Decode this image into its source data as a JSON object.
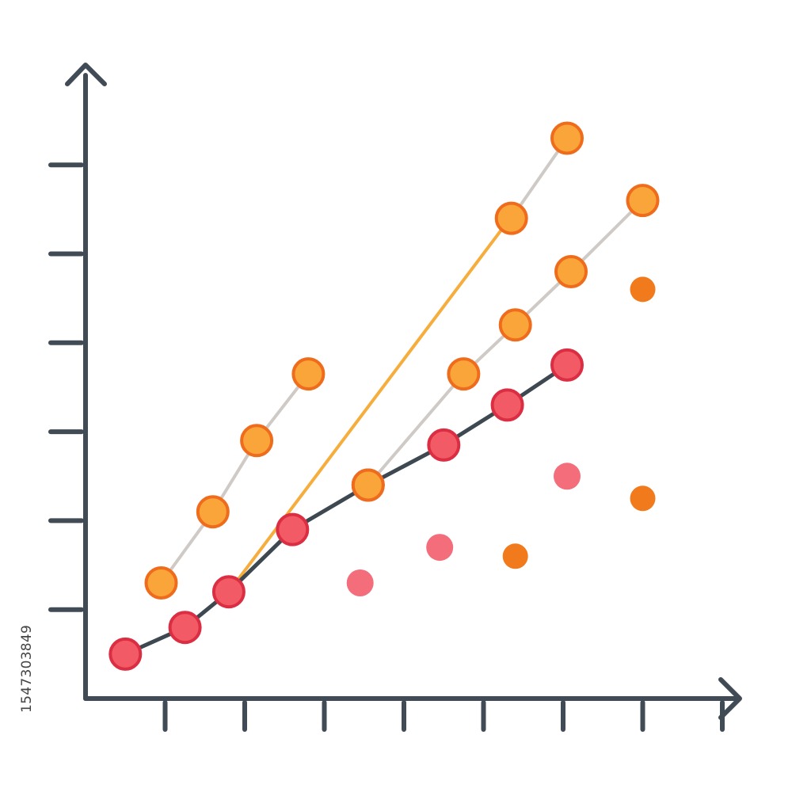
{
  "stock_id": "1547303849",
  "colors": {
    "axis": "#404b55",
    "dark_line": "#3e4851",
    "gray_line": "#cfcac6",
    "orange_line": "#f6ad3c",
    "red_fill": "#f25a66",
    "red_stroke": "#dc2e43",
    "orange_fill": "#f9a53a",
    "orange_stroke": "#ef6c1d",
    "scatter_pink": "#f46d7b",
    "scatter_orange": "#f07a1c"
  },
  "icons": {
    "y_axis_arrow": "arrow-up-icon",
    "x_axis_arrow": "arrow-right-icon"
  },
  "chart_data": {
    "type": "scatter",
    "title": "",
    "xlabel": "",
    "ylabel": "",
    "xlim": [
      0,
      9
    ],
    "ylim": [
      0,
      7.9
    ],
    "x_ticks": [
      1,
      2,
      3,
      4,
      5,
      6,
      7,
      8
    ],
    "y_ticks": [
      1,
      2,
      3,
      4,
      5,
      6
    ],
    "grid": false,
    "legend": "none",
    "series": [
      {
        "marker": "large-red",
        "line": "dark",
        "points": [
          [
            0.5,
            0.5
          ],
          [
            1.25,
            0.8
          ],
          [
            1.8,
            1.2
          ],
          [
            2.6,
            1.9
          ],
          [
            3.55,
            2.4
          ],
          [
            4.5,
            2.85
          ],
          [
            5.3,
            3.3
          ],
          [
            6.05,
            3.75
          ]
        ]
      },
      {
        "marker": "large-orange",
        "line": "gray",
        "points": [
          [
            0.95,
            1.3
          ],
          [
            1.6,
            2.1
          ],
          [
            2.15,
            2.9
          ],
          [
            2.8,
            3.65
          ]
        ]
      },
      {
        "marker": "large-orange",
        "line": "gray",
        "points": [
          [
            3.55,
            2.4
          ],
          [
            4.75,
            3.65
          ],
          [
            5.4,
            4.2
          ],
          [
            6.1,
            4.8
          ],
          [
            7.0,
            5.6
          ]
        ]
      },
      {
        "marker": "large-orange",
        "line": "gray",
        "points": [
          [
            5.35,
            5.4
          ],
          [
            6.05,
            6.3
          ]
        ]
      },
      {
        "marker": "none",
        "line": "orange",
        "points": [
          [
            1.8,
            1.2
          ],
          [
            5.25,
            5.3
          ]
        ]
      },
      {
        "marker": "small-pink",
        "line": "none",
        "points": [
          [
            3.45,
            1.3
          ],
          [
            4.45,
            1.7
          ],
          [
            6.05,
            2.5
          ]
        ]
      },
      {
        "marker": "small-orange",
        "line": "none",
        "points": [
          [
            5.4,
            1.6
          ],
          [
            7.0,
            2.25
          ],
          [
            7.0,
            4.6
          ]
        ]
      }
    ]
  }
}
